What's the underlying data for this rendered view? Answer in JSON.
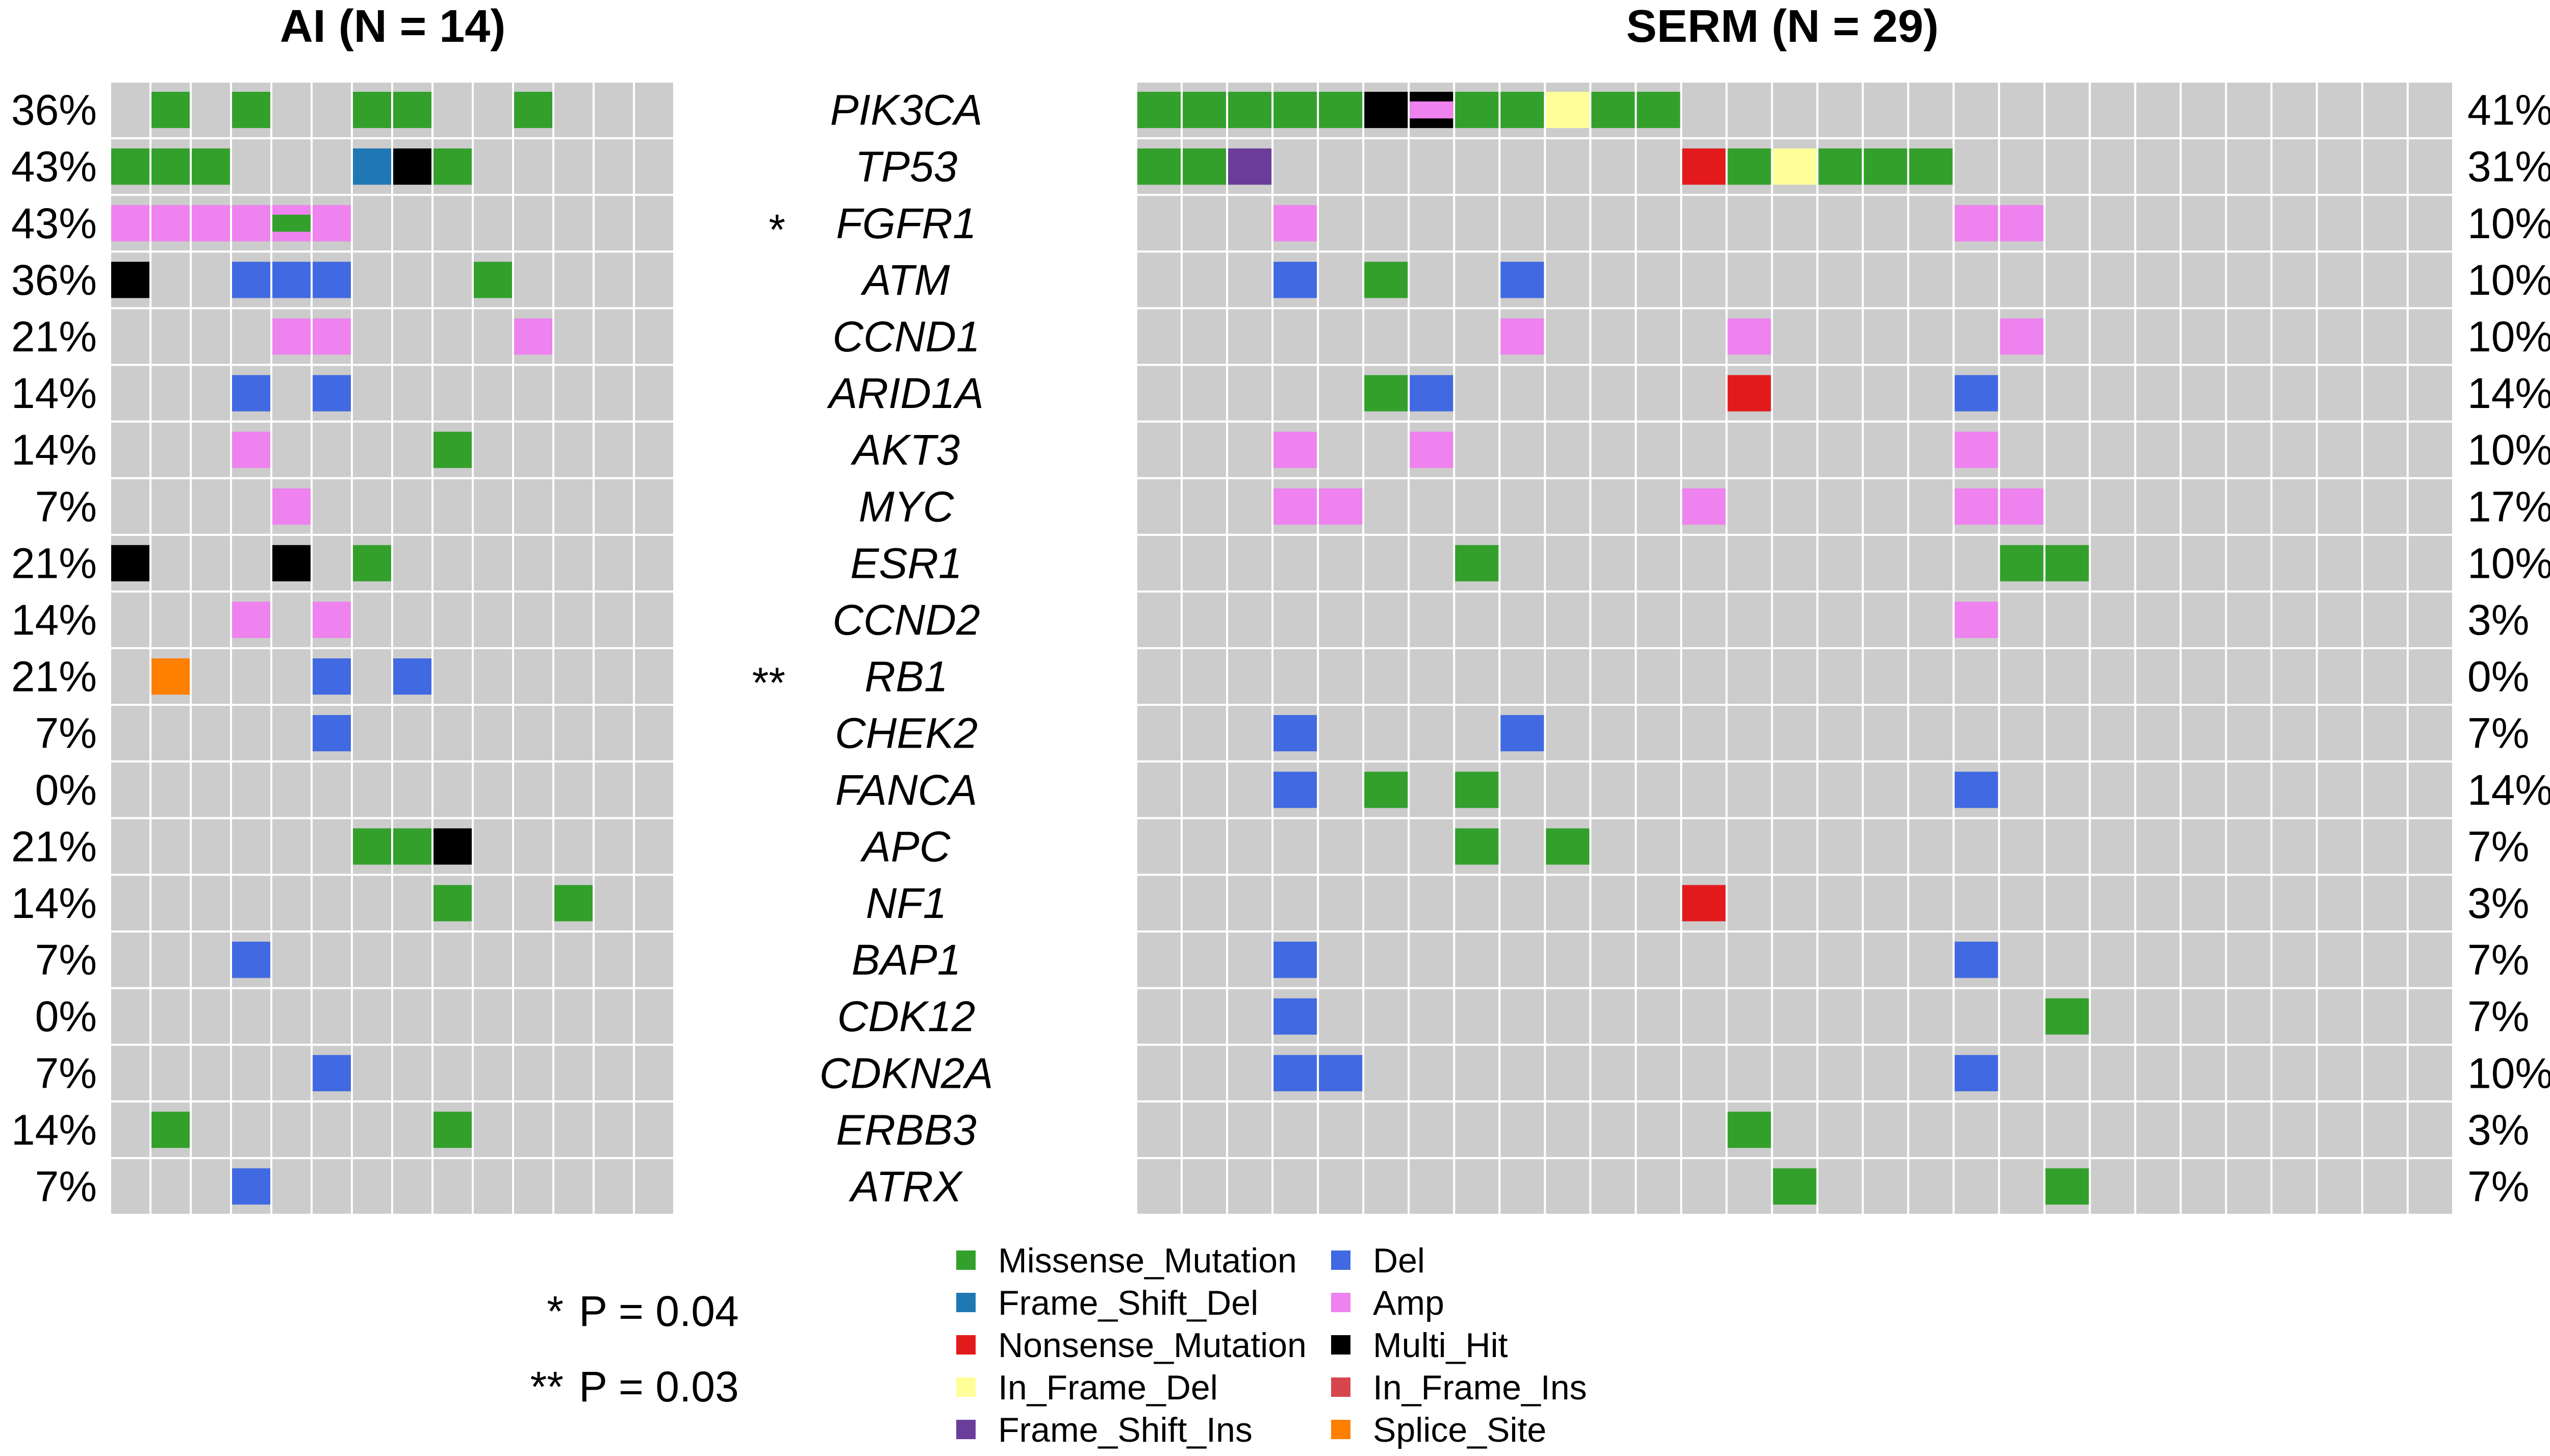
{
  "titles": {
    "left": "AI (N = 14)",
    "right": "SERM (N = 29)"
  },
  "colors": {
    "background_cell": "#cccccc",
    "cell_border": "#ffffff",
    "Missense_Mutation": "#33a02c",
    "Frame_Shift_Del": "#1f78b4",
    "Nonsense_Mutation": "#e31a1c",
    "In_Frame_Del": "#ffff99",
    "Frame_Shift_Ins": "#6a3d9a",
    "Del": "#4169e1",
    "Amp": "#ee82ee",
    "Multi_Hit": "#000000",
    "In_Frame_Ins": "#d7464e",
    "Splice_Site": "#ff7f00"
  },
  "legend": [
    {
      "label": "Missense_Mutation",
      "key": "Missense_Mutation"
    },
    {
      "label": "Frame_Shift_Del",
      "key": "Frame_Shift_Del"
    },
    {
      "label": "Nonsense_Mutation",
      "key": "Nonsense_Mutation"
    },
    {
      "label": "In_Frame_Del",
      "key": "In_Frame_Del"
    },
    {
      "label": "Frame_Shift_Ins",
      "key": "Frame_Shift_Ins"
    },
    {
      "label": "Del",
      "key": "Del"
    },
    {
      "label": "Amp",
      "key": "Amp"
    },
    {
      "label": "Multi_Hit",
      "key": "Multi_Hit"
    },
    {
      "label": "In_Frame_Ins",
      "key": "In_Frame_Ins"
    },
    {
      "label": "Splice_Site",
      "key": "Splice_Site"
    }
  ],
  "significance_notes": [
    {
      "marker": "*",
      "text": "P = 0.04"
    },
    {
      "marker": "**",
      "text": "P = 0.03"
    }
  ],
  "chart_data": {
    "type": "heatmap",
    "subtype": "oncoplot",
    "genes": [
      "PIK3CA",
      "TP53",
      "FGFR1",
      "ATM",
      "CCND1",
      "ARID1A",
      "AKT3",
      "MYC",
      "ESR1",
      "CCND2",
      "RB1",
      "CHEK2",
      "FANCA",
      "APC",
      "NF1",
      "BAP1",
      "CDK12",
      "CDKN2A",
      "ERBB3",
      "ATRX"
    ],
    "gene_markers": [
      "",
      "",
      "*",
      "",
      "",
      "",
      "",
      "",
      "",
      "",
      "**",
      "",
      "",
      "",
      "",
      "",
      "",
      "",
      "",
      ""
    ],
    "panels": [
      {
        "name": "AI (N = 14)",
        "n_samples": 14,
        "percents": [
          "36%",
          "43%",
          "43%",
          "36%",
          "21%",
          "14%",
          "14%",
          "7%",
          "21%",
          "14%",
          "21%",
          "7%",
          "0%",
          "21%",
          "14%",
          "7%",
          "0%",
          "7%",
          "14%",
          "7%"
        ],
        "alterations": [
          {
            "gene": "PIK3CA",
            "sample": 2,
            "type": "Missense_Mutation"
          },
          {
            "gene": "PIK3CA",
            "sample": 4,
            "type": "Missense_Mutation"
          },
          {
            "gene": "PIK3CA",
            "sample": 7,
            "type": "Missense_Mutation"
          },
          {
            "gene": "PIK3CA",
            "sample": 8,
            "type": "Missense_Mutation"
          },
          {
            "gene": "PIK3CA",
            "sample": 11,
            "type": "Missense_Mutation"
          },
          {
            "gene": "TP53",
            "sample": 1,
            "type": "Missense_Mutation"
          },
          {
            "gene": "TP53",
            "sample": 2,
            "type": "Missense_Mutation"
          },
          {
            "gene": "TP53",
            "sample": 3,
            "type": "Missense_Mutation"
          },
          {
            "gene": "TP53",
            "sample": 7,
            "type": "Frame_Shift_Del"
          },
          {
            "gene": "TP53",
            "sample": 8,
            "type": "Multi_Hit"
          },
          {
            "gene": "TP53",
            "sample": 9,
            "type": "Missense_Mutation"
          },
          {
            "gene": "FGFR1",
            "sample": 1,
            "type": "Amp"
          },
          {
            "gene": "FGFR1",
            "sample": 2,
            "type": "Amp"
          },
          {
            "gene": "FGFR1",
            "sample": 3,
            "type": "Amp"
          },
          {
            "gene": "FGFR1",
            "sample": 4,
            "type": "Amp"
          },
          {
            "gene": "FGFR1",
            "sample": 5,
            "type": "Amp"
          },
          {
            "gene": "FGFR1",
            "sample": 5,
            "type": "Missense_Mutation",
            "overlay": true
          },
          {
            "gene": "FGFR1",
            "sample": 6,
            "type": "Amp"
          },
          {
            "gene": "ATM",
            "sample": 1,
            "type": "Multi_Hit"
          },
          {
            "gene": "ATM",
            "sample": 4,
            "type": "Del"
          },
          {
            "gene": "ATM",
            "sample": 5,
            "type": "Del"
          },
          {
            "gene": "ATM",
            "sample": 6,
            "type": "Del"
          },
          {
            "gene": "ATM",
            "sample": 10,
            "type": "Missense_Mutation"
          },
          {
            "gene": "CCND1",
            "sample": 5,
            "type": "Amp"
          },
          {
            "gene": "CCND1",
            "sample": 6,
            "type": "Amp"
          },
          {
            "gene": "CCND1",
            "sample": 11,
            "type": "Amp"
          },
          {
            "gene": "ARID1A",
            "sample": 4,
            "type": "Del"
          },
          {
            "gene": "ARID1A",
            "sample": 6,
            "type": "Del"
          },
          {
            "gene": "AKT3",
            "sample": 4,
            "type": "Amp"
          },
          {
            "gene": "AKT3",
            "sample": 9,
            "type": "Missense_Mutation"
          },
          {
            "gene": "MYC",
            "sample": 5,
            "type": "Amp"
          },
          {
            "gene": "ESR1",
            "sample": 1,
            "type": "Multi_Hit"
          },
          {
            "gene": "ESR1",
            "sample": 5,
            "type": "Multi_Hit"
          },
          {
            "gene": "ESR1",
            "sample": 7,
            "type": "Missense_Mutation"
          },
          {
            "gene": "CCND2",
            "sample": 4,
            "type": "Amp"
          },
          {
            "gene": "CCND2",
            "sample": 6,
            "type": "Amp"
          },
          {
            "gene": "RB1",
            "sample": 2,
            "type": "Splice_Site"
          },
          {
            "gene": "RB1",
            "sample": 6,
            "type": "Del"
          },
          {
            "gene": "RB1",
            "sample": 8,
            "type": "Del"
          },
          {
            "gene": "CHEK2",
            "sample": 6,
            "type": "Del"
          },
          {
            "gene": "APC",
            "sample": 7,
            "type": "Missense_Mutation"
          },
          {
            "gene": "APC",
            "sample": 8,
            "type": "Missense_Mutation"
          },
          {
            "gene": "APC",
            "sample": 9,
            "type": "Multi_Hit"
          },
          {
            "gene": "NF1",
            "sample": 9,
            "type": "Missense_Mutation"
          },
          {
            "gene": "NF1",
            "sample": 12,
            "type": "Missense_Mutation"
          },
          {
            "gene": "BAP1",
            "sample": 4,
            "type": "Del"
          },
          {
            "gene": "CDKN2A",
            "sample": 6,
            "type": "Del"
          },
          {
            "gene": "ERBB3",
            "sample": 2,
            "type": "Missense_Mutation"
          },
          {
            "gene": "ERBB3",
            "sample": 9,
            "type": "Missense_Mutation"
          },
          {
            "gene": "ATRX",
            "sample": 4,
            "type": "Del"
          }
        ]
      },
      {
        "name": "SERM (N = 29)",
        "n_samples": 29,
        "percents": [
          "41%",
          "31%",
          "10%",
          "10%",
          "10%",
          "14%",
          "10%",
          "17%",
          "10%",
          "3%",
          "0%",
          "7%",
          "14%",
          "7%",
          "3%",
          "7%",
          "7%",
          "10%",
          "3%",
          "7%"
        ],
        "alterations": [
          {
            "gene": "PIK3CA",
            "sample": 1,
            "type": "Missense_Mutation"
          },
          {
            "gene": "PIK3CA",
            "sample": 2,
            "type": "Missense_Mutation"
          },
          {
            "gene": "PIK3CA",
            "sample": 3,
            "type": "Missense_Mutation"
          },
          {
            "gene": "PIK3CA",
            "sample": 4,
            "type": "Missense_Mutation"
          },
          {
            "gene": "PIK3CA",
            "sample": 5,
            "type": "Missense_Mutation"
          },
          {
            "gene": "PIK3CA",
            "sample": 6,
            "type": "Multi_Hit"
          },
          {
            "gene": "PIK3CA",
            "sample": 7,
            "type": "Multi_Hit"
          },
          {
            "gene": "PIK3CA",
            "sample": 7,
            "type": "Amp",
            "overlay": true
          },
          {
            "gene": "PIK3CA",
            "sample": 8,
            "type": "Missense_Mutation"
          },
          {
            "gene": "PIK3CA",
            "sample": 9,
            "type": "Missense_Mutation"
          },
          {
            "gene": "PIK3CA",
            "sample": 10,
            "type": "In_Frame_Del"
          },
          {
            "gene": "PIK3CA",
            "sample": 11,
            "type": "Missense_Mutation"
          },
          {
            "gene": "PIK3CA",
            "sample": 12,
            "type": "Missense_Mutation"
          },
          {
            "gene": "TP53",
            "sample": 1,
            "type": "Missense_Mutation"
          },
          {
            "gene": "TP53",
            "sample": 2,
            "type": "Missense_Mutation"
          },
          {
            "gene": "TP53",
            "sample": 3,
            "type": "Frame_Shift_Ins"
          },
          {
            "gene": "TP53",
            "sample": 13,
            "type": "Nonsense_Mutation"
          },
          {
            "gene": "TP53",
            "sample": 14,
            "type": "Missense_Mutation"
          },
          {
            "gene": "TP53",
            "sample": 15,
            "type": "In_Frame_Del"
          },
          {
            "gene": "TP53",
            "sample": 16,
            "type": "Missense_Mutation"
          },
          {
            "gene": "TP53",
            "sample": 17,
            "type": "Missense_Mutation"
          },
          {
            "gene": "TP53",
            "sample": 18,
            "type": "Missense_Mutation"
          },
          {
            "gene": "FGFR1",
            "sample": 4,
            "type": "Amp"
          },
          {
            "gene": "FGFR1",
            "sample": 19,
            "type": "Amp"
          },
          {
            "gene": "FGFR1",
            "sample": 20,
            "type": "Amp"
          },
          {
            "gene": "ATM",
            "sample": 4,
            "type": "Del"
          },
          {
            "gene": "ATM",
            "sample": 6,
            "type": "Missense_Mutation"
          },
          {
            "gene": "ATM",
            "sample": 9,
            "type": "Del"
          },
          {
            "gene": "CCND1",
            "sample": 9,
            "type": "Amp"
          },
          {
            "gene": "CCND1",
            "sample": 14,
            "type": "Amp"
          },
          {
            "gene": "CCND1",
            "sample": 20,
            "type": "Amp"
          },
          {
            "gene": "ARID1A",
            "sample": 6,
            "type": "Missense_Mutation"
          },
          {
            "gene": "ARID1A",
            "sample": 7,
            "type": "Del"
          },
          {
            "gene": "ARID1A",
            "sample": 14,
            "type": "Nonsense_Mutation"
          },
          {
            "gene": "ARID1A",
            "sample": 19,
            "type": "Del"
          },
          {
            "gene": "AKT3",
            "sample": 4,
            "type": "Amp"
          },
          {
            "gene": "AKT3",
            "sample": 7,
            "type": "Amp"
          },
          {
            "gene": "AKT3",
            "sample": 19,
            "type": "Amp"
          },
          {
            "gene": "MYC",
            "sample": 4,
            "type": "Amp"
          },
          {
            "gene": "MYC",
            "sample": 5,
            "type": "Amp"
          },
          {
            "gene": "MYC",
            "sample": 13,
            "type": "Amp"
          },
          {
            "gene": "MYC",
            "sample": 19,
            "type": "Amp"
          },
          {
            "gene": "MYC",
            "sample": 20,
            "type": "Amp"
          },
          {
            "gene": "ESR1",
            "sample": 8,
            "type": "Missense_Mutation"
          },
          {
            "gene": "ESR1",
            "sample": 20,
            "type": "Missense_Mutation"
          },
          {
            "gene": "ESR1",
            "sample": 21,
            "type": "Missense_Mutation"
          },
          {
            "gene": "CCND2",
            "sample": 19,
            "type": "Amp"
          },
          {
            "gene": "CHEK2",
            "sample": 4,
            "type": "Del"
          },
          {
            "gene": "CHEK2",
            "sample": 9,
            "type": "Del"
          },
          {
            "gene": "FANCA",
            "sample": 4,
            "type": "Del"
          },
          {
            "gene": "FANCA",
            "sample": 6,
            "type": "Missense_Mutation"
          },
          {
            "gene": "FANCA",
            "sample": 8,
            "type": "Missense_Mutation"
          },
          {
            "gene": "FANCA",
            "sample": 19,
            "type": "Del"
          },
          {
            "gene": "APC",
            "sample": 8,
            "type": "Missense_Mutation"
          },
          {
            "gene": "APC",
            "sample": 10,
            "type": "Missense_Mutation"
          },
          {
            "gene": "NF1",
            "sample": 13,
            "type": "Nonsense_Mutation"
          },
          {
            "gene": "BAP1",
            "sample": 4,
            "type": "Del"
          },
          {
            "gene": "BAP1",
            "sample": 19,
            "type": "Del"
          },
          {
            "gene": "CDK12",
            "sample": 4,
            "type": "Del"
          },
          {
            "gene": "CDK12",
            "sample": 21,
            "type": "Missense_Mutation"
          },
          {
            "gene": "CDKN2A",
            "sample": 4,
            "type": "Del"
          },
          {
            "gene": "CDKN2A",
            "sample": 5,
            "type": "Del"
          },
          {
            "gene": "CDKN2A",
            "sample": 19,
            "type": "Del"
          },
          {
            "gene": "ERBB3",
            "sample": 14,
            "type": "Missense_Mutation"
          },
          {
            "gene": "ATRX",
            "sample": 15,
            "type": "Missense_Mutation"
          },
          {
            "gene": "ATRX",
            "sample": 21,
            "type": "Missense_Mutation"
          }
        ]
      }
    ]
  }
}
